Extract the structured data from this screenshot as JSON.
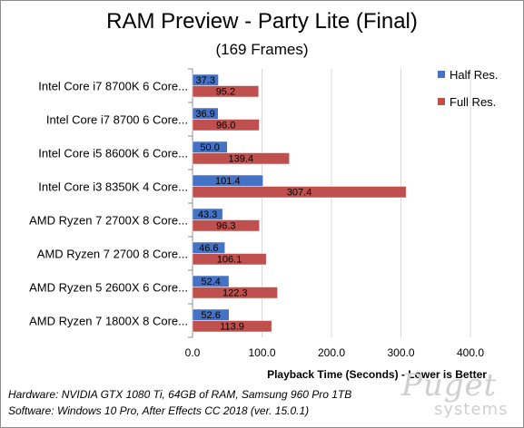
{
  "chart_data": {
    "type": "bar",
    "orientation": "horizontal",
    "title": "RAM Preview - Party Lite (Final)",
    "subtitle": "(169 Frames)",
    "xlabel": "Playback  Time (Seconds)  - Lower is Better",
    "xlim": [
      0,
      400
    ],
    "xticks": [
      "0.0",
      "100.0",
      "200.0",
      "300.0",
      "400.0"
    ],
    "grid": "vertical",
    "legend_position": "right",
    "categories": [
      "Intel Core i7 8700K 6 Core...",
      "Intel Core i7 8700 6 Core...",
      "Intel Core i5 8600K 6 Core...",
      "Intel Core i3 8350K 4 Core...",
      "AMD Ryzen 7 2700X 8 Core...",
      "AMD Ryzen 7 2700 8 Core...",
      "AMD Ryzen 5 2600X 6 Core...",
      "AMD Ryzen 7 1800X 8 Core..."
    ],
    "series": [
      {
        "name": "Half Res.",
        "color": "#4472c4",
        "values": [
          37.3,
          36.9,
          50.0,
          101.4,
          43.3,
          46.6,
          52.4,
          52.6
        ]
      },
      {
        "name": "Full Res.",
        "color": "#c0504d",
        "values": [
          95.2,
          96.0,
          139.4,
          307.4,
          96.3,
          106.1,
          122.3,
          113.9
        ]
      }
    ]
  },
  "footer": {
    "hardware": "Hardware: NVIDIA GTX 1080 Ti, 64GB of RAM, Samsung 960 Pro 1TB",
    "software": "Software: Windows 10 Pro, After Effects CC 2018 (ver. 15.0.1)"
  },
  "watermark": {
    "brand": "Puget",
    "tagline": "systems"
  }
}
